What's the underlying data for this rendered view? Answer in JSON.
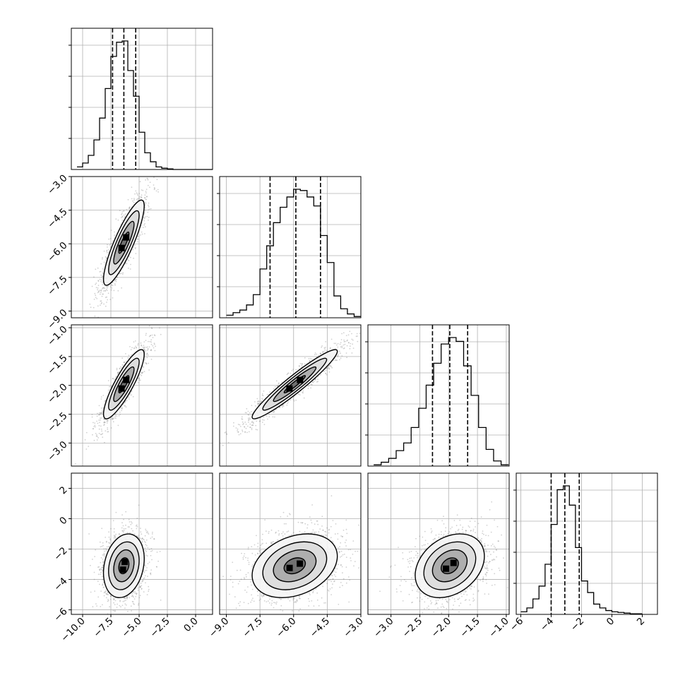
{
  "chart_data": {
    "type": "corner",
    "parameters": 4,
    "grid": true,
    "colors": {
      "line": "#000000",
      "grid": "#b0b0b0",
      "points": "#7a7a7a"
    },
    "ranges": [
      [
        -11.0,
        1.5
      ],
      [
        -9.3,
        -3.0
      ],
      [
        -3.4,
        -0.95
      ],
      [
        -6.3,
        3.0
      ]
    ],
    "ticks": [
      {
        "values": [
          -10,
          -7.5,
          -5,
          -2.5,
          0
        ],
        "labels": [
          "−10.0",
          "−7.5",
          "−5.0",
          "−2.5",
          "0.0"
        ]
      },
      {
        "values": [
          -9,
          -7.5,
          -6,
          -4.5,
          -3
        ],
        "labels": [
          "−9.0",
          "−7.5",
          "−6.0",
          "−4.5",
          "−3.0"
        ]
      },
      {
        "values": [
          -3,
          -2.5,
          -2,
          -1.5,
          -1
        ],
        "labels": [
          "−3.0",
          "−2.5",
          "−2.0",
          "−1.5",
          "−1.0"
        ]
      },
      {
        "values": [
          -6,
          -4,
          -2,
          0,
          2
        ],
        "labels": [
          "−6",
          "−4",
          "−2",
          "0",
          "2"
        ]
      }
    ],
    "marginals": [
      {
        "parameter": 0,
        "bin_edges": [
          -10.5,
          -10.0,
          -9.5,
          -9.0,
          -8.5,
          -8.0,
          -7.5,
          -7.0,
          -6.5,
          -6.0,
          -5.5,
          -5.0,
          -4.5,
          -4.0,
          -3.5,
          -3.0,
          -2.5,
          -2.0,
          -1.5,
          -1.0,
          -0.5,
          0.0,
          0.5,
          1.0,
          1.5
        ],
        "counts": [
          0.02,
          0.05,
          0.11,
          0.23,
          0.4,
          0.63,
          0.88,
          0.99,
          1.0,
          0.77,
          0.57,
          0.29,
          0.13,
          0.06,
          0.02,
          0.01,
          0.005,
          0,
          0,
          0,
          0,
          0,
          0,
          0
        ],
        "quantiles": [
          -7.35,
          -6.35,
          -5.3
        ]
      },
      {
        "parameter": 1,
        "bin_edges": [
          -9.0,
          -8.7,
          -8.4,
          -8.1,
          -7.8,
          -7.5,
          -7.2,
          -6.9,
          -6.6,
          -6.3,
          -6.0,
          -5.7,
          -5.4,
          -5.1,
          -4.8,
          -4.5,
          -4.2,
          -3.9,
          -3.6,
          -3.3,
          -3.0
        ],
        "counts": [
          0.02,
          0.04,
          0.06,
          0.1,
          0.18,
          0.38,
          0.56,
          0.74,
          0.86,
          0.94,
          1.0,
          0.99,
          0.94,
          0.87,
          0.64,
          0.43,
          0.17,
          0.07,
          0.03,
          0.01
        ],
        "quantiles": [
          -7.05,
          -5.9,
          -4.8
        ]
      },
      {
        "parameter": 2,
        "bin_edges": [
          -3.3,
          -3.17,
          -3.04,
          -2.91,
          -2.78,
          -2.65,
          -2.52,
          -2.39,
          -2.26,
          -2.13,
          -2.0,
          -1.87,
          -1.74,
          -1.61,
          -1.48,
          -1.35,
          -1.22,
          -1.09,
          -0.96
        ],
        "counts": [
          0.01,
          0.03,
          0.06,
          0.12,
          0.18,
          0.3,
          0.45,
          0.63,
          0.8,
          0.95,
          1.0,
          0.97,
          0.78,
          0.55,
          0.3,
          0.13,
          0.04,
          0.01
        ],
        "quantiles": [
          -2.28,
          -1.98,
          -1.67
        ]
      },
      {
        "parameter": 3,
        "bin_edges": [
          -6.0,
          -5.6,
          -5.2,
          -4.8,
          -4.4,
          -4.0,
          -3.6,
          -3.2,
          -2.8,
          -2.4,
          -2.0,
          -1.6,
          -1.2,
          -0.8,
          -0.4,
          0.0,
          0.4,
          0.8,
          1.2,
          1.6,
          2.0
        ],
        "counts": [
          0.02,
          0.05,
          0.12,
          0.22,
          0.39,
          0.7,
          0.97,
          1.0,
          0.85,
          0.52,
          0.26,
          0.17,
          0.08,
          0.05,
          0.03,
          0.02,
          0.015,
          0.01,
          0.005,
          0.005
        ],
        "quantiles": [
          -4.0,
          -3.1,
          -2.15
        ]
      }
    ],
    "pairs": [
      {
        "x": 0,
        "y": 1,
        "mean": [
          -6.35,
          -5.95
        ],
        "sd": [
          0.9,
          0.95
        ],
        "corr": 0.86
      },
      {
        "x": 0,
        "y": 2,
        "mean": [
          -6.35,
          -1.98
        ],
        "sd": [
          0.9,
          0.3
        ],
        "corr": 0.86
      },
      {
        "x": 1,
        "y": 2,
        "mean": [
          -5.95,
          -1.98
        ],
        "sd": [
          0.95,
          0.3
        ],
        "corr": 0.95
      },
      {
        "x": 0,
        "y": 3,
        "mean": [
          -6.35,
          -3.1
        ],
        "sd": [
          0.9,
          1.05
        ],
        "corr": 0.22
      },
      {
        "x": 1,
        "y": 3,
        "mean": [
          -5.95,
          -3.1
        ],
        "sd": [
          0.95,
          1.05
        ],
        "corr": 0.3
      },
      {
        "x": 2,
        "y": 3,
        "mean": [
          -1.98,
          -3.1
        ],
        "sd": [
          0.3,
          1.05
        ],
        "corr": 0.3
      }
    ],
    "contour_levels_sigma": [
      0.5,
      1.0,
      1.5,
      2.0
    ],
    "scatter_points_per_panel": 1400
  }
}
